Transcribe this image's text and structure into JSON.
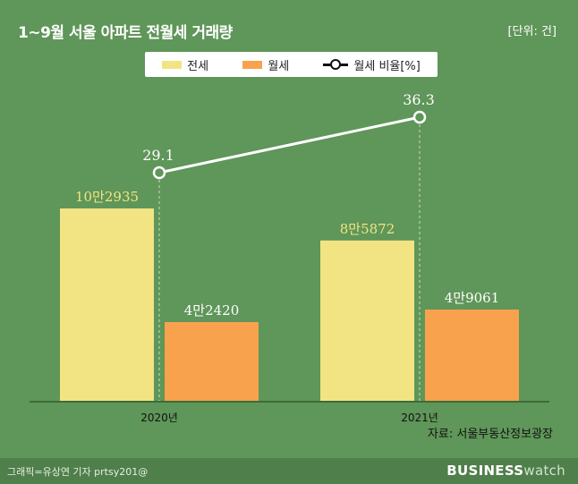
{
  "title": "1~9월 서울 아파트 전월세 거래량",
  "unit": "[단위: 건]",
  "legend": {
    "jeonse": "전세",
    "wolse": "월세",
    "ratio": "월세 비율[%]"
  },
  "source": "자료: 서울부동산정보광장",
  "credit": "그래픽=유상연 기자 prtsy201@",
  "brand": {
    "part1": "BUSINESS",
    "part2": "watch"
  },
  "colors": {
    "background": "#5f9659",
    "jeonse": "#f2e483",
    "wolse": "#f9a24d",
    "line": "#ffffff"
  },
  "chart_data": {
    "type": "bar",
    "categories": [
      "2020년",
      "2021년"
    ],
    "series": [
      {
        "name": "전세",
        "values": [
          102935,
          85872
        ],
        "labels": [
          "10만2935",
          "8만5872"
        ]
      },
      {
        "name": "월세",
        "values": [
          42420,
          49061
        ],
        "labels": [
          "4만2420",
          "4만9061"
        ]
      }
    ],
    "line_series": {
      "name": "월세 비율[%]",
      "values": [
        29.1,
        36.3
      ],
      "labels": [
        "29.1",
        "36.3"
      ]
    },
    "grid": false,
    "legend_position": "top"
  }
}
